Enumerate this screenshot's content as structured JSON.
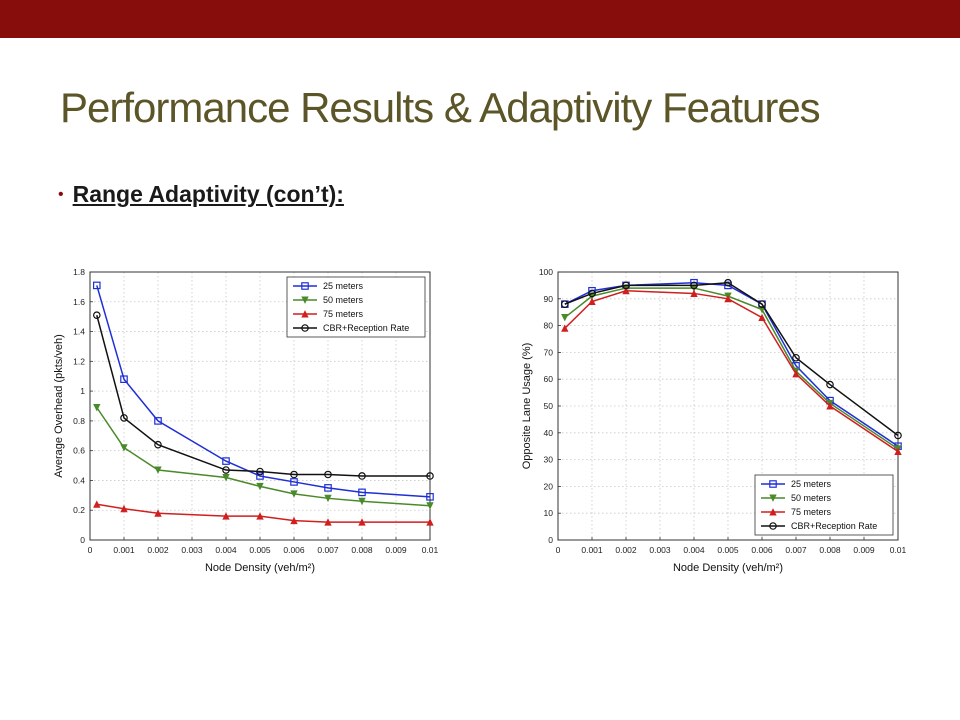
{
  "slide": {
    "title": "Performance Results & Adaptivity Features",
    "bullet": "Range Adaptivity (con’t):"
  },
  "colors": {
    "top_bar": "#870c0c",
    "title": "#5b5527"
  },
  "chart_data": [
    {
      "type": "line",
      "xlabel": "Node Density (veh/m²)",
      "ylabel": "Average Overhead (pkts/veh)",
      "xlim": [
        0,
        0.01
      ],
      "ylim": [
        0,
        1.8
      ],
      "xticks": [
        "0",
        "0.001",
        "0.002",
        "0.003",
        "0.004",
        "0.005",
        "0.006",
        "0.007",
        "0.008",
        "0.009",
        "0.01"
      ],
      "yticks": [
        "0",
        "0.2",
        "0.4",
        "0.6",
        "0.8",
        "1",
        "1.2",
        "1.4",
        "1.6",
        "1.8"
      ],
      "grid": true,
      "legend_position": "top-right",
      "x": [
        0.0002,
        0.001,
        0.002,
        0.004,
        0.005,
        0.006,
        0.007,
        0.008,
        0.01
      ],
      "series": [
        {
          "name": "25 meters",
          "color": "#1f2fd6",
          "marker": "square",
          "values": [
            1.71,
            1.08,
            0.8,
            0.53,
            0.43,
            0.39,
            0.35,
            0.32,
            0.29
          ]
        },
        {
          "name": "50 meters",
          "color": "#4a8a2a",
          "marker": "triangle-down",
          "values": [
            0.89,
            0.62,
            0.47,
            0.42,
            0.36,
            0.31,
            0.28,
            0.26,
            0.23
          ]
        },
        {
          "name": "75 meters",
          "color": "#d01f1f",
          "marker": "triangle-up",
          "values": [
            0.24,
            0.21,
            0.18,
            0.16,
            0.16,
            0.13,
            0.12,
            0.12,
            0.12
          ]
        },
        {
          "name": "CBR+Reception Rate",
          "color": "#111111",
          "marker": "circle",
          "values": [
            1.51,
            0.82,
            0.64,
            0.47,
            0.46,
            0.44,
            0.44,
            0.43,
            0.43
          ]
        }
      ]
    },
    {
      "type": "line",
      "xlabel": "Node Density (veh/m²)",
      "ylabel": "Opposite Lane Usage (%)",
      "xlim": [
        0,
        0.01
      ],
      "ylim": [
        0,
        100
      ],
      "xticks": [
        "0",
        "0.001",
        "0.002",
        "0.003",
        "0.004",
        "0.005",
        "0.006",
        "0.007",
        "0.008",
        "0.009",
        "0.01"
      ],
      "yticks": [
        "0",
        "10",
        "20",
        "30",
        "40",
        "50",
        "60",
        "70",
        "80",
        "90",
        "100"
      ],
      "grid": true,
      "legend_position": "bottom-right",
      "x": [
        0.0002,
        0.001,
        0.002,
        0.004,
        0.005,
        0.006,
        0.007,
        0.008,
        0.01
      ],
      "series": [
        {
          "name": "25 meters",
          "color": "#1f2fd6",
          "marker": "square",
          "values": [
            88,
            93,
            95,
            96,
            95,
            88,
            65,
            52,
            35
          ]
        },
        {
          "name": "50 meters",
          "color": "#4a8a2a",
          "marker": "triangle-down",
          "values": [
            83,
            91,
            94,
            94,
            91,
            86,
            63,
            51,
            34
          ]
        },
        {
          "name": "75 meters",
          "color": "#d01f1f",
          "marker": "triangle-up",
          "values": [
            79,
            89,
            93,
            92,
            90,
            83,
            62,
            50,
            33
          ]
        },
        {
          "name": "CBR+Reception Rate",
          "color": "#111111",
          "marker": "circle",
          "values": [
            88,
            92,
            95,
            95,
            96,
            88,
            68,
            58,
            39
          ]
        }
      ]
    }
  ]
}
